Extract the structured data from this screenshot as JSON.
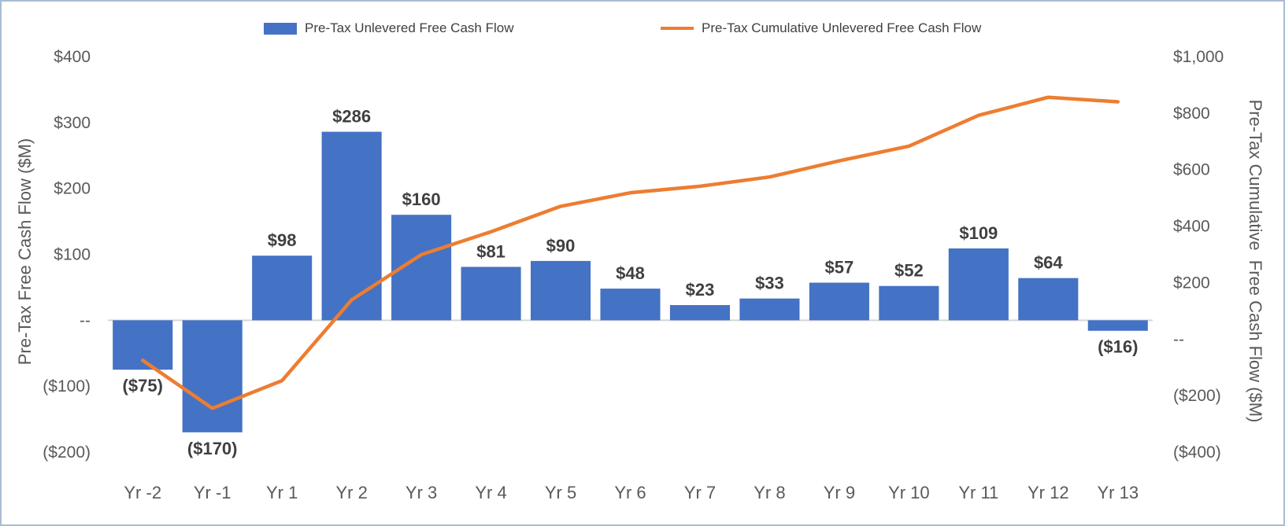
{
  "chart_data": {
    "type": "combo",
    "title": "",
    "categories": [
      "Yr -2",
      "Yr -1",
      "Yr 1",
      "Yr 2",
      "Yr 3",
      "Yr 4",
      "Yr 5",
      "Yr 6",
      "Yr 7",
      "Yr 8",
      "Yr 9",
      "Yr 10",
      "Yr 11",
      "Yr 12",
      "Yr 13"
    ],
    "series": [
      {
        "name": "Pre-Tax Unlevered Free Cash Flow",
        "type": "bar",
        "axis": "left",
        "color": "#4472C4",
        "values": [
          -75,
          -170,
          98,
          286,
          160,
          81,
          90,
          48,
          23,
          33,
          57,
          52,
          109,
          64,
          -16
        ],
        "labels": [
          "($75)",
          "($170)",
          "$98",
          "$286",
          "$160",
          "$81",
          "$90",
          "$48",
          "$23",
          "$33",
          "$57",
          "$52",
          "$109",
          "$64",
          "($16)"
        ]
      },
      {
        "name": "Pre-Tax Cumulative Unlevered Free Cash Flow",
        "type": "line",
        "axis": "right",
        "color": "#ED7D31",
        "values": [
          -75,
          -245,
          -147,
          139,
          299,
          380,
          470,
          518,
          541,
          574,
          631,
          683,
          792,
          856,
          840
        ]
      }
    ],
    "ylabel_left": "Pre-Tax Free Cash Flow ($M)",
    "ylabel_right": "Pre-Tax Cumulative  Free Cash Flow ($M)",
    "xlabel": "",
    "axis_left": {
      "min": -200,
      "max": 400,
      "ticks": [
        {
          "v": 400,
          "label": "$400"
        },
        {
          "v": 300,
          "label": "$300"
        },
        {
          "v": 200,
          "label": "$200"
        },
        {
          "v": 100,
          "label": "$100"
        },
        {
          "v": 0,
          "label": "--"
        },
        {
          "v": -100,
          "label": "($100)"
        },
        {
          "v": -200,
          "label": "($200)"
        }
      ]
    },
    "axis_right": {
      "min": -400,
      "max": 1000,
      "ticks": [
        {
          "v": 1000,
          "label": "$1,000"
        },
        {
          "v": 800,
          "label": "$800"
        },
        {
          "v": 600,
          "label": "$600"
        },
        {
          "v": 400,
          "label": "$400"
        },
        {
          "v": 200,
          "label": "$200"
        },
        {
          "v": 0,
          "label": "--"
        },
        {
          "v": -200,
          "label": "($200)"
        },
        {
          "v": -400,
          "label": "($400)"
        }
      ]
    },
    "legend_position": "top",
    "grid": false,
    "colors": {
      "bar": "#4472C4",
      "line": "#ED7D31",
      "tick_text": "#595959",
      "data_label_text": "#404040",
      "axis_line": "#d6d6d6"
    }
  }
}
